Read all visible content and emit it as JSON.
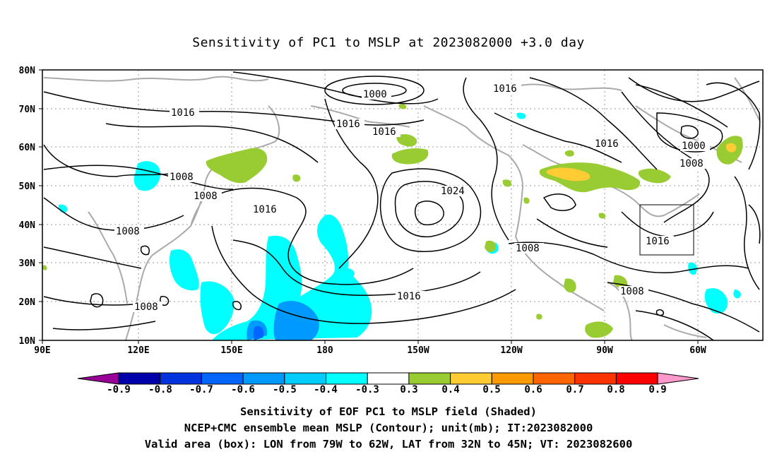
{
  "title": "Sensitivity of PC1 to MSLP at 2023082000 +3.0 day",
  "axes": {
    "y_ticks": [
      "80N",
      "70N",
      "60N",
      "50N",
      "40N",
      "30N",
      "20N",
      "10N"
    ],
    "x_ticks": [
      "90E",
      "120E",
      "150E",
      "180",
      "150W",
      "120W",
      "90W",
      "60W"
    ]
  },
  "contour_labels": {
    "c1000a": "1000",
    "c1000b": "1000",
    "c1016a": "1016",
    "c1016b": "1016",
    "c1016c": "1016",
    "c1016d": "1016",
    "c1016e": "1016",
    "c1016f": "1016",
    "c1016g": "1016",
    "c1016h": "1016",
    "c1008a": "1008",
    "c1008b": "1008",
    "c1008c": "1008",
    "c1008d": "1008",
    "c1008e": "1008",
    "c1008f": "1008",
    "c1008g": "1008",
    "c1024": "1024"
  },
  "colorbar": {
    "labels": [
      "-0.9",
      "-0.8",
      "-0.7",
      "-0.6",
      "-0.5",
      "-0.4",
      "-0.3",
      "0.3",
      "0.4",
      "0.5",
      "0.6",
      "0.7",
      "0.8",
      "0.9"
    ],
    "colors": [
      "#990099",
      "#0000aa",
      "#0033dd",
      "#0066ff",
      "#0099ff",
      "#00ccff",
      "#00ffff",
      "#ffffff",
      "#99cc33",
      "#ffcc33",
      "#ff9900",
      "#ff6600",
      "#ff3300",
      "#ff0000",
      "#ff99cc"
    ]
  },
  "captions": {
    "line1": "Sensitivity of EOF PC1 to MSLP field (Shaded)",
    "line2": "NCEP+CMC ensemble mean MSLP (Contour); unit(mb); IT:2023082000",
    "line3": "Valid area (box): LON from 79W to 62W, LAT from 32N to 45N; VT: 2023082600"
  },
  "valid_box": {
    "lon_from": "79W",
    "lon_to": "62W",
    "lat_from": "32N",
    "lat_to": "45N"
  }
}
